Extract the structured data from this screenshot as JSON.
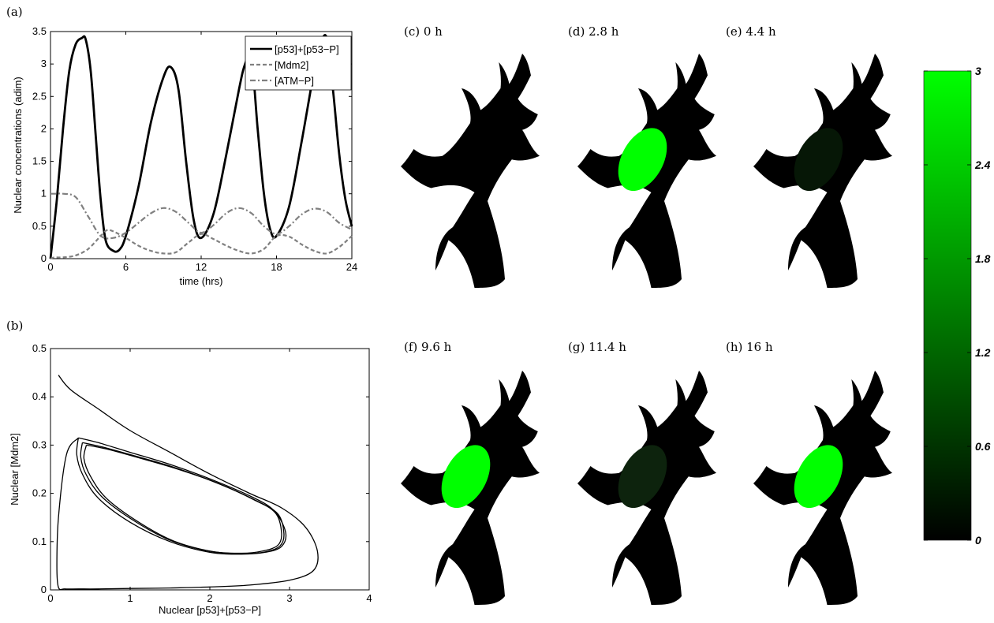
{
  "panels": {
    "a": "(a)",
    "b": "(b)",
    "c": "(c) 0 h",
    "d": "(d) 2.8 h",
    "e": "(e) 4.4 h",
    "f": "(f) 9.6 h",
    "g": "(g) 11.4 h",
    "h": "(h) 16 h"
  },
  "colors": {
    "green": "#00ff00",
    "cell": "#000000",
    "p53_line": "#000000",
    "mdm2_line": "#808080",
    "atm_line": "#808080"
  },
  "colorbar": {
    "ticks": [
      "3",
      "2.4",
      "1.8",
      "1.2",
      "0.6",
      "0"
    ],
    "min": 0,
    "max": 3
  },
  "cells": [
    {
      "id": "c",
      "nucleus_level": 0
    },
    {
      "id": "d",
      "nucleus_level": 2.9
    },
    {
      "id": "e",
      "nucleus_level": 0.15
    },
    {
      "id": "f",
      "nucleus_level": 2.7
    },
    {
      "id": "g",
      "nucleus_level": 0.3
    },
    {
      "id": "h",
      "nucleus_level": 2.8
    }
  ],
  "chart_data": [
    {
      "type": "line",
      "xlabel": "time (hrs)",
      "ylabel": "Nuclear concentrations (adim)",
      "xlim": [
        0,
        24
      ],
      "ylim": [
        0,
        3.5
      ],
      "xticks": [
        "0",
        "6",
        "12",
        "18",
        "24"
      ],
      "yticks": [
        "0",
        "0.5",
        "1",
        "1.5",
        "2",
        "2.5",
        "3",
        "3.5"
      ],
      "legend_position": "top-right",
      "series": [
        {
          "name": "[p53]+[p53−P]",
          "style": "solid",
          "x": [
            0,
            0.5,
            1,
            1.5,
            2,
            2.5,
            2.8,
            3.2,
            3.6,
            4.0,
            4.4,
            5,
            5.5,
            6,
            7,
            8,
            9,
            9.6,
            10.2,
            10.8,
            11.4,
            12,
            13,
            14,
            15,
            15.5,
            16,
            16.5,
            17,
            17.5,
            18,
            19,
            20,
            21,
            21.5,
            22,
            22.5,
            23,
            23.5,
            24
          ],
          "y": [
            0,
            0.9,
            2.0,
            2.9,
            3.3,
            3.4,
            3.38,
            2.9,
            1.9,
            0.9,
            0.28,
            0.12,
            0.14,
            0.35,
            1.1,
            2.1,
            2.8,
            2.95,
            2.6,
            1.5,
            0.6,
            0.32,
            0.7,
            1.6,
            2.6,
            3.0,
            3.1,
            2.0,
            1.0,
            0.45,
            0.35,
            0.8,
            1.8,
            2.9,
            3.3,
            3.4,
            2.6,
            1.6,
            0.9,
            0.5
          ]
        },
        {
          "name": "[Mdm2]",
          "style": "dashed",
          "x": [
            0,
            0.3,
            1,
            2,
            3,
            4,
            4.5,
            5,
            6,
            7,
            8,
            9,
            10,
            11,
            12,
            13,
            14,
            15,
            16,
            17,
            18,
            19,
            20,
            21,
            22,
            23,
            24
          ],
          "y": [
            0,
            0.02,
            0.02,
            0.05,
            0.15,
            0.35,
            0.44,
            0.42,
            0.32,
            0.2,
            0.12,
            0.08,
            0.1,
            0.25,
            0.38,
            0.3,
            0.2,
            0.12,
            0.08,
            0.15,
            0.35,
            0.34,
            0.22,
            0.12,
            0.08,
            0.18,
            0.35
          ]
        },
        {
          "name": "[ATM−P]",
          "style": "dashdot",
          "x": [
            0,
            0.3,
            1,
            2,
            3,
            4,
            5,
            6,
            7,
            8,
            9,
            10,
            11,
            12,
            13,
            14,
            15,
            16,
            17,
            18,
            19,
            20,
            21,
            22,
            23,
            24
          ],
          "y": [
            1.0,
            1.0,
            1.0,
            0.95,
            0.65,
            0.35,
            0.32,
            0.4,
            0.55,
            0.7,
            0.78,
            0.72,
            0.55,
            0.4,
            0.52,
            0.7,
            0.78,
            0.7,
            0.5,
            0.38,
            0.5,
            0.68,
            0.77,
            0.72,
            0.55,
            0.45
          ]
        }
      ]
    },
    {
      "type": "line",
      "xlabel": "Nuclear [p53]+[p53−P]",
      "ylabel": "Nuclear [Mdm2]",
      "xlim": [
        0,
        4
      ],
      "ylim": [
        0,
        0.5
      ],
      "xticks": [
        "0",
        "1",
        "2",
        "3",
        "4"
      ],
      "yticks": [
        "0",
        "0.1",
        "0.2",
        "0.3",
        "0.4",
        "0.5"
      ],
      "series": [
        {
          "style": "solid",
          "x": [
            0.1,
            0.25,
            0.6,
            1.0,
            1.5,
            2.0,
            2.5,
            2.9,
            3.2,
            3.35,
            3.3,
            3.0,
            2.5,
            2.0,
            1.5,
            1.0,
            0.6,
            0.35,
            0.18,
            0.1,
            0.08,
            0.1,
            0.2,
            0.35
          ],
          "y": [
            0.445,
            0.415,
            0.375,
            0.33,
            0.285,
            0.24,
            0.2,
            0.17,
            0.13,
            0.08,
            0.04,
            0.02,
            0.01,
            0.006,
            0.004,
            0.003,
            0.002,
            0.002,
            0.002,
            0.005,
            0.05,
            0.15,
            0.28,
            0.315
          ]
        },
        {
          "style": "solid",
          "x": [
            0.35,
            0.6,
            1.0,
            1.5,
            2.0,
            2.5,
            2.8,
            2.95,
            2.9,
            2.7,
            2.4,
            2.0,
            1.5,
            1.0,
            0.6,
            0.4,
            0.33,
            0.35
          ],
          "y": [
            0.315,
            0.305,
            0.285,
            0.26,
            0.23,
            0.195,
            0.165,
            0.12,
            0.09,
            0.078,
            0.074,
            0.078,
            0.1,
            0.14,
            0.19,
            0.24,
            0.28,
            0.315
          ]
        },
        {
          "style": "solid",
          "x": [
            0.4,
            0.65,
            1.05,
            1.55,
            2.05,
            2.52,
            2.82,
            2.9,
            2.85,
            2.65,
            2.4,
            2.0,
            1.5,
            1.05,
            0.65,
            0.45,
            0.38,
            0.4
          ],
          "y": [
            0.305,
            0.296,
            0.278,
            0.254,
            0.224,
            0.19,
            0.16,
            0.118,
            0.092,
            0.08,
            0.076,
            0.08,
            0.103,
            0.143,
            0.192,
            0.238,
            0.275,
            0.305
          ]
        },
        {
          "style": "solid",
          "x": [
            0.45,
            0.7,
            1.1,
            1.6,
            2.1,
            2.55,
            2.85,
            2.93,
            2.88,
            2.7,
            2.45,
            2.05,
            1.55,
            1.1,
            0.7,
            0.5,
            0.42,
            0.45
          ],
          "y": [
            0.3,
            0.292,
            0.274,
            0.25,
            0.221,
            0.187,
            0.158,
            0.117,
            0.091,
            0.079,
            0.075,
            0.079,
            0.101,
            0.141,
            0.19,
            0.236,
            0.272,
            0.3
          ]
        }
      ]
    }
  ]
}
